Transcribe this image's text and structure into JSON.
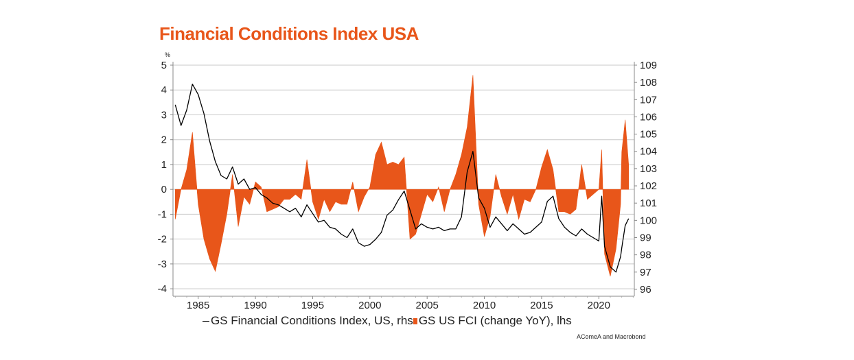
{
  "title": "Financial Conditions Index USA",
  "source": "AComeA and Macrobond",
  "colors": {
    "fci": "#000000",
    "yoy": "#e8561a",
    "title": "#e8561a",
    "grid": "#c8c8c8"
  },
  "chart_data": {
    "type": "line",
    "left_axis": {
      "unit_label": "%",
      "ylim": [
        -4.3,
        5
      ],
      "ticks": [
        -4,
        -3,
        -2,
        -1,
        0,
        1,
        2,
        3,
        4,
        5
      ]
    },
    "right_axis": {
      "ylim": [
        95.6,
        109
      ],
      "ticks": [
        96,
        97,
        98,
        99,
        100,
        101,
        102,
        103,
        104,
        105,
        106,
        107,
        108,
        109
      ]
    },
    "x_axis": {
      "xlim": [
        1982.8,
        2023.1
      ],
      "ticks": [
        1985,
        1990,
        1995,
        2000,
        2005,
        2010,
        2015,
        2020
      ]
    },
    "grid": true,
    "legend_position": "bottom",
    "series": [
      {
        "name": "GS Financial Conditions Index, US, rhs",
        "type": "line",
        "axis": "right",
        "x": [
          1983.0,
          1983.5,
          1984.0,
          1984.5,
          1985.0,
          1985.5,
          1986.0,
          1986.5,
          1987.0,
          1987.5,
          1988.0,
          1988.5,
          1989.0,
          1989.5,
          1990.0,
          1990.5,
          1991.0,
          1991.5,
          1992.0,
          1992.5,
          1993.0,
          1993.5,
          1994.0,
          1994.5,
          1995.0,
          1995.5,
          1996.0,
          1996.5,
          1997.0,
          1997.5,
          1998.0,
          1998.5,
          1999.0,
          1999.5,
          2000.0,
          2000.5,
          2001.0,
          2001.5,
          2002.0,
          2002.5,
          2003.0,
          2003.5,
          2004.0,
          2004.5,
          2005.0,
          2005.5,
          2006.0,
          2006.5,
          2007.0,
          2007.5,
          2008.0,
          2008.5,
          2009.0,
          2009.5,
          2010.0,
          2010.5,
          2011.0,
          2011.5,
          2012.0,
          2012.5,
          2013.0,
          2013.5,
          2014.0,
          2014.5,
          2015.0,
          2015.5,
          2016.0,
          2016.5,
          2017.0,
          2017.5,
          2018.0,
          2018.5,
          2019.0,
          2019.5,
          2020.0,
          2020.25,
          2020.5,
          2021.0,
          2021.5,
          2021.9,
          2022.0,
          2022.3,
          2022.6
        ],
        "values": [
          106.7,
          105.5,
          106.4,
          107.9,
          107.3,
          106.2,
          104.6,
          103.4,
          102.6,
          102.4,
          103.1,
          102.1,
          102.4,
          101.8,
          101.9,
          101.5,
          101.3,
          101.0,
          100.9,
          100.7,
          100.5,
          100.7,
          100.2,
          100.9,
          100.4,
          99.9,
          100.0,
          99.6,
          99.5,
          99.2,
          99.0,
          99.5,
          98.7,
          98.5,
          98.6,
          98.9,
          99.3,
          100.3,
          100.6,
          101.2,
          101.7,
          100.6,
          99.5,
          99.8,
          99.6,
          99.5,
          99.6,
          99.4,
          99.5,
          99.5,
          100.2,
          102.8,
          104.0,
          101.3,
          100.7,
          99.6,
          100.2,
          99.8,
          99.4,
          99.8,
          99.5,
          99.2,
          99.3,
          99.6,
          99.9,
          101.1,
          101.4,
          100.1,
          99.6,
          99.3,
          99.1,
          99.5,
          99.2,
          99.0,
          98.8,
          101.4,
          98.5,
          97.3,
          97.0,
          97.9,
          98.4,
          99.7,
          100.1
        ]
      },
      {
        "name": "GS US FCI (change YoY), lhs",
        "type": "area",
        "axis": "left",
        "x": [
          1983.0,
          1983.5,
          1984.0,
          1984.5,
          1985.0,
          1985.5,
          1986.0,
          1986.5,
          1987.0,
          1987.5,
          1988.0,
          1988.5,
          1989.0,
          1989.5,
          1990.0,
          1990.5,
          1991.0,
          1991.5,
          1992.0,
          1992.5,
          1993.0,
          1993.5,
          1994.0,
          1994.5,
          1995.0,
          1995.5,
          1996.0,
          1996.5,
          1997.0,
          1997.5,
          1998.0,
          1998.5,
          1999.0,
          1999.5,
          2000.0,
          2000.5,
          2001.0,
          2001.5,
          2002.0,
          2002.5,
          2003.0,
          2003.5,
          2004.0,
          2004.5,
          2005.0,
          2005.5,
          2006.0,
          2006.5,
          2007.0,
          2007.5,
          2008.0,
          2008.5,
          2009.0,
          2009.5,
          2010.0,
          2010.5,
          2011.0,
          2011.5,
          2012.0,
          2012.5,
          2013.0,
          2013.5,
          2014.0,
          2014.5,
          2015.0,
          2015.5,
          2016.0,
          2016.5,
          2017.0,
          2017.5,
          2018.0,
          2018.5,
          2019.0,
          2019.5,
          2020.0,
          2020.25,
          2020.5,
          2021.0,
          2021.5,
          2021.9,
          2022.0,
          2022.3,
          2022.6
        ],
        "values": [
          -1.2,
          0.0,
          0.8,
          2.3,
          -0.6,
          -2.0,
          -2.8,
          -3.3,
          -2.2,
          -1.0,
          0.6,
          -1.5,
          -0.3,
          -0.6,
          0.3,
          0.1,
          -0.9,
          -0.8,
          -0.7,
          -0.4,
          -0.4,
          -0.2,
          -0.4,
          1.2,
          -0.5,
          -1.2,
          -0.4,
          -0.9,
          -0.5,
          -0.6,
          -0.6,
          0.3,
          -0.9,
          -0.3,
          0.1,
          1.4,
          1.9,
          1.0,
          1.1,
          1.0,
          1.3,
          -2.0,
          -1.8,
          -1.0,
          -0.2,
          -0.5,
          0.1,
          -0.9,
          0.0,
          0.6,
          1.4,
          2.5,
          4.6,
          -0.6,
          -1.9,
          -1.1,
          0.6,
          -0.3,
          -1.0,
          -0.2,
          -1.2,
          -0.4,
          -0.5,
          0.0,
          0.9,
          1.6,
          0.8,
          -0.9,
          -0.9,
          -1.0,
          -0.8,
          1.0,
          -0.4,
          -0.2,
          0.0,
          1.6,
          -2.6,
          -3.5,
          -2.4,
          -0.6,
          1.5,
          2.8,
          1.0
        ]
      }
    ]
  },
  "legend": {
    "line_label": "GS Financial Conditions Index, US, rhs",
    "area_label": "GS US FCI (change YoY), lhs"
  }
}
